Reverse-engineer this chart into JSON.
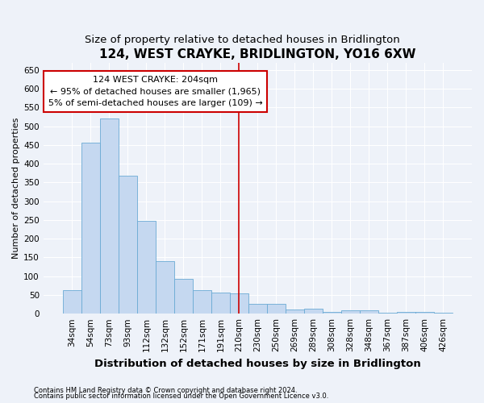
{
  "title": "124, WEST CRAYKE, BRIDLINGTON, YO16 6XW",
  "subtitle": "Size of property relative to detached houses in Bridlington",
  "xlabel": "Distribution of detached houses by size in Bridlington",
  "ylabel": "Number of detached properties",
  "footnote1": "Contains HM Land Registry data © Crown copyright and database right 2024.",
  "footnote2": "Contains public sector information licensed under the Open Government Licence v3.0.",
  "bar_labels": [
    "34sqm",
    "54sqm",
    "73sqm",
    "93sqm",
    "112sqm",
    "132sqm",
    "152sqm",
    "171sqm",
    "191sqm",
    "210sqm",
    "230sqm",
    "250sqm",
    "269sqm",
    "289sqm",
    "308sqm",
    "328sqm",
    "348sqm",
    "367sqm",
    "387sqm",
    "406sqm",
    "426sqm"
  ],
  "bar_values": [
    62,
    457,
    520,
    368,
    248,
    140,
    93,
    63,
    57,
    55,
    26,
    27,
    12,
    13,
    5,
    9,
    9,
    3,
    4,
    4,
    3
  ],
  "bar_color": "#c5d8f0",
  "bar_edge_color": "#6aaad4",
  "vline_x": 9.0,
  "vline_color": "#cc0000",
  "annotation_text": "124 WEST CRAYKE: 204sqm\n← 95% of detached houses are smaller (1,965)\n5% of semi-detached houses are larger (109) →",
  "annotation_box_color": "#cc0000",
  "ylim": [
    0,
    670
  ],
  "yticks": [
    0,
    50,
    100,
    150,
    200,
    250,
    300,
    350,
    400,
    450,
    500,
    550,
    600,
    650
  ],
  "background_color": "#eef2f9",
  "grid_color": "#ffffff",
  "title_fontsize": 11,
  "subtitle_fontsize": 9.5,
  "xlabel_fontsize": 9.5,
  "ylabel_fontsize": 8,
  "tick_fontsize": 7.5,
  "annot_fontsize": 8,
  "footnote_fontsize": 6
}
